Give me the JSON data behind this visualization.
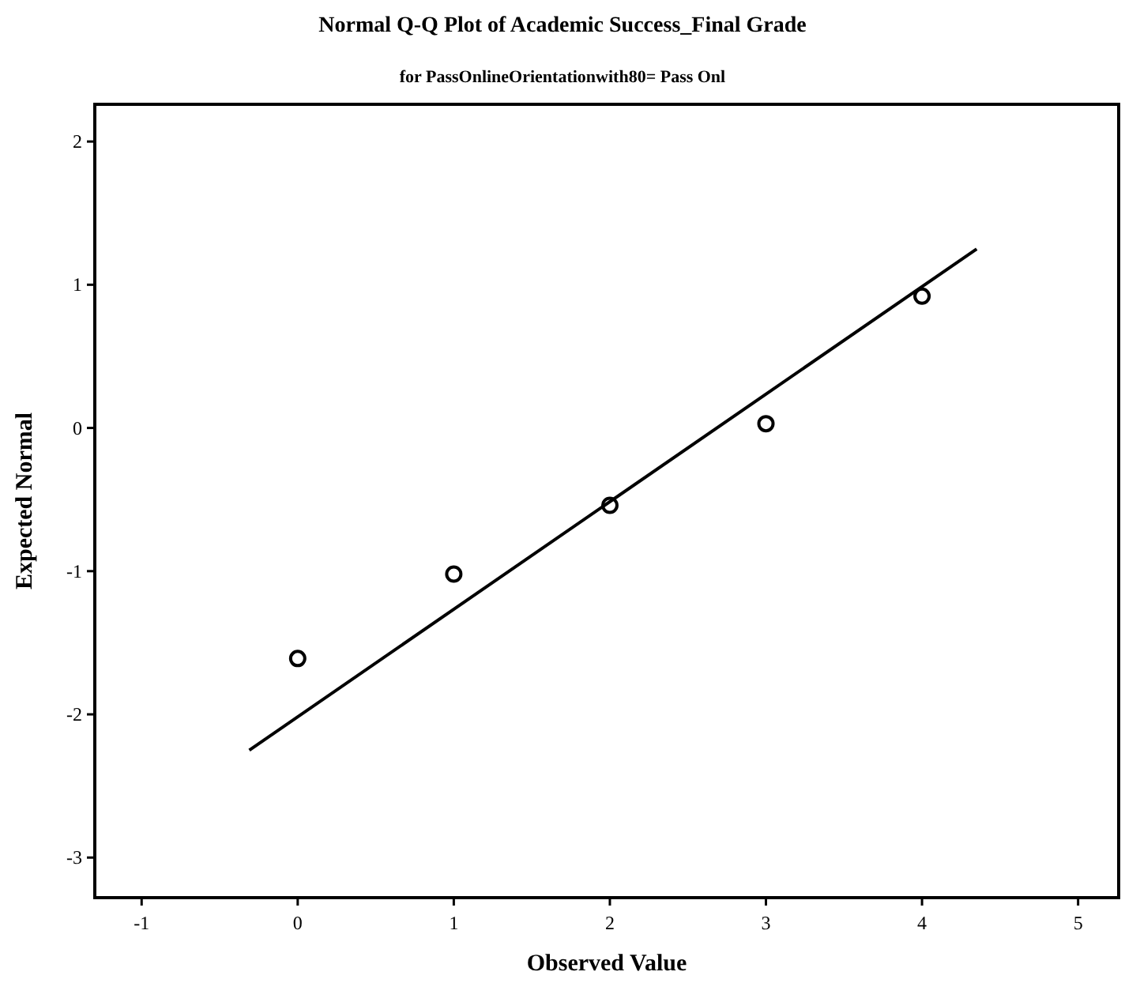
{
  "chart_data": {
    "type": "scatter",
    "title": "Normal Q-Q Plot of Academic Success_Final Grade",
    "subtitle": "for PassOnlineOrientationwith80= Pass Onl",
    "xlabel": "Observed Value",
    "ylabel": "Expected Normal",
    "series": [
      {
        "color": "#000000",
        "x": [
          0,
          1,
          2,
          3,
          4
        ],
        "values": [
          -1.61,
          -1.02,
          -0.54,
          0.03,
          0.92
        ],
        "marker": "circle"
      },
      {
        "type": "line",
        "color": "#000000",
        "x": [
          -0.31,
          4.35
        ],
        "values": [
          -2.25,
          1.25
        ],
        "marker": "none"
      }
    ],
    "xlim": [
      -1.3,
      5.26
    ],
    "ylim": [
      -3.28,
      2.26
    ],
    "xticks": [
      -1,
      0,
      1,
      2,
      3,
      4,
      5
    ],
    "yticks": [
      -3,
      -2,
      -1,
      0,
      1,
      2
    ],
    "grid": false
  }
}
